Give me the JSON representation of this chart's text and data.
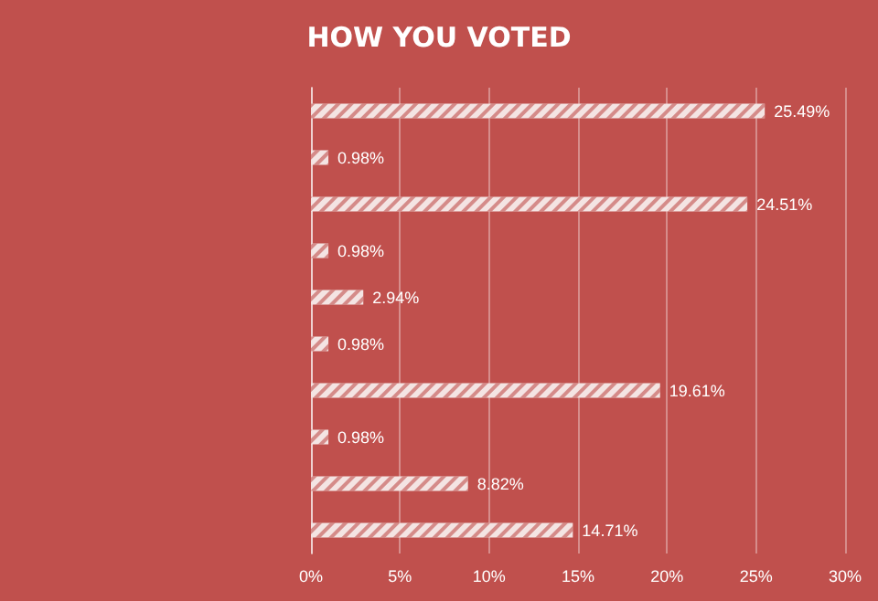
{
  "chart_data": {
    "type": "bar",
    "title": "HOW YOU VOTED",
    "orientation": "horizontal",
    "categories": [
      null,
      null,
      null,
      null,
      null,
      null,
      null,
      null,
      null,
      null
    ],
    "values": [
      25.49,
      0.98,
      24.51,
      0.98,
      2.94,
      0.98,
      19.61,
      0.98,
      8.82,
      14.71
    ],
    "value_labels": [
      "25.49%",
      "0.98%",
      "24.51%",
      "0.98%",
      "2.94%",
      "0.98%",
      "19.61%",
      "0.98%",
      "8.82%",
      "14.71%"
    ],
    "color": "#f4e4e3",
    "xlim": [
      0,
      30
    ],
    "xticks": [
      {
        "value": 0,
        "label": "0%"
      },
      {
        "value": 5,
        "label": "5%"
      },
      {
        "value": 10,
        "label": "10%"
      },
      {
        "value": 15,
        "label": "15%"
      },
      {
        "value": 20,
        "label": "20%"
      },
      {
        "value": 25,
        "label": "25%"
      },
      {
        "value": 30,
        "label": "30%"
      }
    ],
    "grid": "x"
  }
}
